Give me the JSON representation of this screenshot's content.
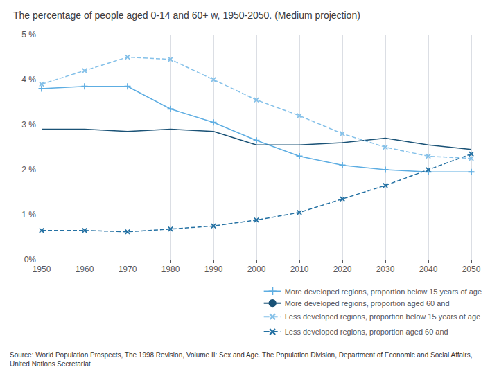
{
  "chart_data": {
    "type": "line",
    "title": "The percentage of people aged 0-14 and 60+ w, 1950-2050. (Medium projection)",
    "annotations": [
      "Source: World Population Prospects, The 1998 Revision, Volume II: Sex and Age. The Population Division, Department of Economic and Social Affairs, United Nations Secretariat"
    ],
    "x": [
      1950,
      1960,
      1970,
      1980,
      1990,
      2000,
      2010,
      2020,
      2030,
      2040,
      2050
    ],
    "series": [
      {
        "name": "More developed regions, proportion below 15 years of age",
        "color": "#5DADE2",
        "marker": "plus",
        "line_style": "solid",
        "values": [
          3.8,
          3.85,
          3.85,
          3.35,
          3.05,
          2.65,
          2.3,
          2.1,
          2.0,
          1.95,
          1.95
        ]
      },
      {
        "name": "More developed regions, proportion aged 60 and",
        "color": "#1A5276",
        "marker": "none",
        "line_style": "solid",
        "values": [
          2.9,
          2.9,
          2.85,
          2.9,
          2.85,
          2.55,
          2.55,
          2.6,
          2.7,
          2.55,
          2.45
        ]
      },
      {
        "name": "Less developed regions, proportion below 15 years of age",
        "color": "#85C1E9",
        "marker": "x",
        "line_style": "dashed",
        "values": [
          3.9,
          4.2,
          4.5,
          4.45,
          4.0,
          3.55,
          3.2,
          2.8,
          2.5,
          2.3,
          2.25
        ]
      },
      {
        "name": "Less developed regions, proportion aged 60 and",
        "color": "#2471A3",
        "marker": "x",
        "line_style": "dashed",
        "values": [
          0.65,
          0.65,
          0.62,
          0.68,
          0.75,
          0.88,
          1.05,
          1.35,
          1.65,
          2.0,
          2.35
        ]
      }
    ],
    "xlim": [
      1950,
      2050
    ],
    "xticks": [
      1950,
      1960,
      1970,
      1980,
      1990,
      2000,
      2010,
      2020,
      2030,
      2040,
      2050
    ],
    "ylim": [
      0,
      5
    ],
    "yticks": [
      {
        "value": 0,
        "label": "0%"
      },
      {
        "value": 1,
        "label": "1 %"
      },
      {
        "value": 2,
        "label": "2 %"
      },
      {
        "value": 3,
        "label": "3 %"
      },
      {
        "value": 4,
        "label": "4 %"
      },
      {
        "value": 5,
        "label": "5 %"
      }
    ],
    "grid": "x",
    "legend": "lower right"
  }
}
